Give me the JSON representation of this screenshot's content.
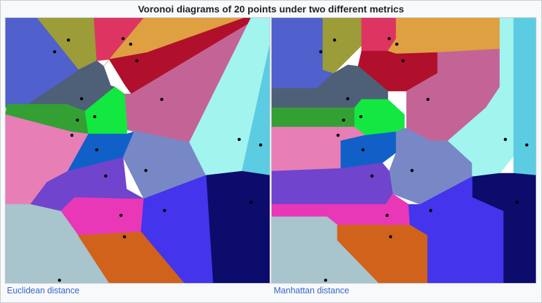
{
  "title": "Voronoi diagrams of 20 points under two different metrics",
  "panels": [
    {
      "caption": "Euclidean distance"
    },
    {
      "caption": "Manhattan distance"
    }
  ],
  "region_colors": {
    "r1": "#5060cc",
    "r2": "#9c9c38",
    "r3": "#de3462",
    "r4": "#dea040",
    "r5": "#b0102c",
    "r6": "#4e6078",
    "r7": "#c46496",
    "r8": "#34a034",
    "r9": "#12e840",
    "r10": "#e87eb6",
    "r11": "#1060c8",
    "r12": "#7888c6",
    "r13": "#a2f4ee",
    "r14": "#5ccce2",
    "r15": "#7044cc",
    "r16": "#0c0c6c",
    "r17": "#e838b8",
    "r18": "#4434ec",
    "r19": "#a8c4cc",
    "r20": "#d0621c"
  }
}
